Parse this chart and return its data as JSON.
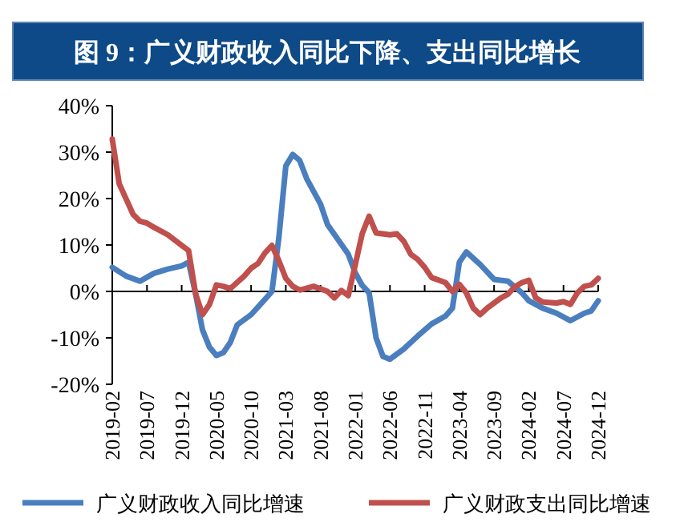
{
  "chart_data": {
    "type": "line",
    "title": "图 9：广义财政收入同比下降、支出同比增长",
    "series": [
      {
        "name": "广义财政收入同比增速",
        "color": "#4a7ebf",
        "x": [
          "2019-02",
          "2019-04",
          "2019-06",
          "2019-08",
          "2019-10",
          "2019-12",
          "2020-01",
          "2020-02",
          "2020-03",
          "2020-04",
          "2020-05",
          "2020-06",
          "2020-07",
          "2020-08",
          "2020-10",
          "2020-12",
          "2021-01",
          "2021-02",
          "2021-03",
          "2021-04",
          "2021-05",
          "2021-06",
          "2021-08",
          "2021-09",
          "2021-12",
          "2022-01",
          "2022-02",
          "2022-03",
          "2022-04",
          "2022-05",
          "2022-06",
          "2022-08",
          "2022-10",
          "2022-12",
          "2023-02",
          "2023-03",
          "2023-04",
          "2023-05",
          "2023-07",
          "2023-09",
          "2023-11",
          "2024-01",
          "2024-02",
          "2024-04",
          "2024-06",
          "2024-08",
          "2024-10",
          "2024-11",
          "2024-12"
        ],
        "values": [
          5.2,
          3.3,
          2.2,
          3.9,
          4.8,
          5.5,
          6.3,
          -0.5,
          -8.3,
          -12,
          -13.8,
          -13.2,
          -11,
          -7.2,
          -5,
          -1.7,
          0,
          11.6,
          27,
          29.5,
          28.2,
          24.3,
          18.8,
          14.4,
          8,
          4,
          1.3,
          -0.3,
          -10,
          -14,
          -14.6,
          -12.4,
          -9.6,
          -7,
          -5.3,
          -3.6,
          6.3,
          8.5,
          5.8,
          2.6,
          2.2,
          -0.3,
          -2,
          -3.6,
          -4.7,
          -6.3,
          -4.7,
          -4.2,
          -2
        ]
      },
      {
        "name": "广义财政支出同比增速",
        "color": "#c0504d",
        "x": [
          "2019-02",
          "2019-03",
          "2019-04",
          "2019-05",
          "2019-06",
          "2019-07",
          "2019-08",
          "2019-10",
          "2019-12",
          "2020-01",
          "2020-02",
          "2020-03",
          "2020-04",
          "2020-05",
          "2020-06",
          "2020-07",
          "2020-09",
          "2020-10",
          "2020-11",
          "2020-12",
          "2021-01",
          "2021-02",
          "2021-03",
          "2021-04",
          "2021-05",
          "2021-07",
          "2021-09",
          "2021-10",
          "2021-11",
          "2021-12",
          "2022-01",
          "2022-02",
          "2022-03",
          "2022-04",
          "2022-06",
          "2022-07",
          "2022-08",
          "2022-09",
          "2022-10",
          "2022-11",
          "2022-12",
          "2023-02",
          "2023-03",
          "2023-04",
          "2023-05",
          "2023-06",
          "2023-07",
          "2023-08",
          "2023-10",
          "2023-11",
          "2023-12",
          "2024-01",
          "2024-02",
          "2024-03",
          "2024-04",
          "2024-06",
          "2024-07",
          "2024-08",
          "2024-09",
          "2024-10",
          "2024-11",
          "2024-12"
        ],
        "values": [
          32.8,
          23.2,
          19.9,
          16.6,
          15.1,
          14.7,
          13.8,
          12.2,
          9.9,
          8.8,
          -0.5,
          -5,
          -2.8,
          1.4,
          1.1,
          0.6,
          3.3,
          5,
          6,
          8.3,
          9.9,
          6.6,
          2.8,
          1.1,
          0.3,
          1.1,
          0,
          -1.4,
          0.2,
          -0.9,
          5.7,
          12.4,
          16.2,
          12.6,
          12.2,
          12.4,
          10.8,
          8,
          6.9,
          5.2,
          3,
          1.9,
          0,
          1.5,
          -0.3,
          -3.6,
          -5,
          -3.6,
          -1.4,
          -0.6,
          1,
          1.9,
          2.4,
          -1.4,
          -2.3,
          -2.5,
          -2.2,
          -2.8,
          -0.3,
          1.1,
          1.4,
          2.8
        ]
      }
    ],
    "xlim": [
      "2019-02",
      "2024-12"
    ],
    "xticks": [
      "2019-02",
      "2019-07",
      "2019-12",
      "2020-05",
      "2020-10",
      "2021-03",
      "2021-08",
      "2022-01",
      "2022-06",
      "2022-11",
      "2023-04",
      "2023-09",
      "2024-02",
      "2024-07",
      "2024-12"
    ],
    "ylim": [
      -20,
      40
    ],
    "yticks": [
      {
        "value": -20,
        "label": "-20%"
      },
      {
        "value": -10,
        "label": "-10%"
      },
      {
        "value": 0,
        "label": "0%"
      },
      {
        "value": 10,
        "label": "10%"
      },
      {
        "value": 20,
        "label": "20%"
      },
      {
        "value": 30,
        "label": "30%"
      },
      {
        "value": 40,
        "label": "40%"
      }
    ],
    "legend": "bottom",
    "marker": "none",
    "line_style": "solid"
  }
}
